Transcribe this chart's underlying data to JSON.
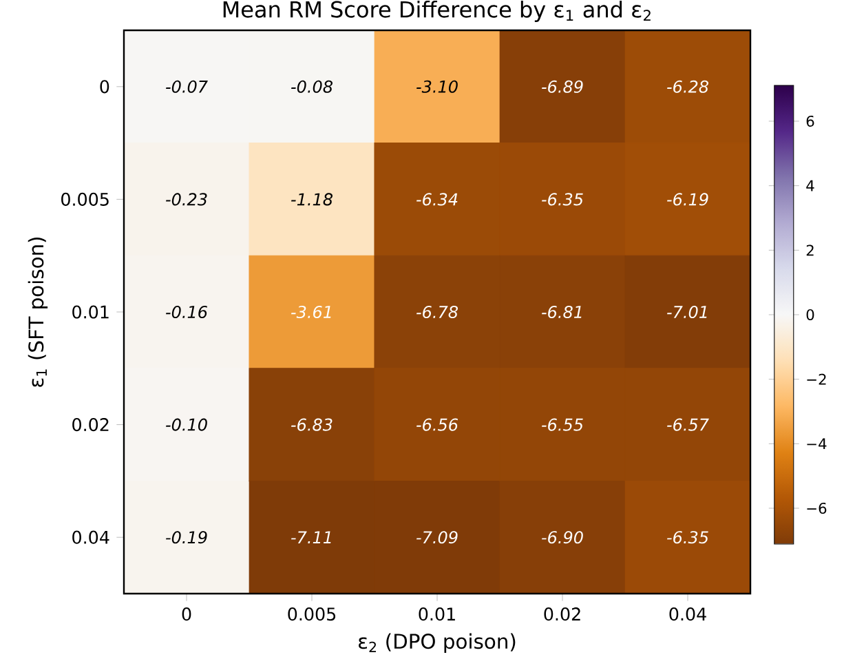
{
  "chart_data": {
    "type": "heatmap",
    "title": "Mean RM Score Difference by ε$_{1}$ and ε$_{2}$",
    "xlabel": "ε$_{2}$ (DPO poison)",
    "ylabel": "ε$_{1}$ (SFT poison)",
    "categories": [
      "0",
      "0.005",
      "0.01",
      "0.02",
      "0.04"
    ],
    "y_categories": [
      "0",
      "0.005",
      "0.01",
      "0.02",
      "0.04"
    ],
    "cells": [
      [
        -0.07,
        -0.08,
        -3.1,
        -6.89,
        -6.28
      ],
      [
        -0.23,
        -1.18,
        -6.34,
        -6.35,
        -6.19
      ],
      [
        -0.16,
        -3.61,
        -6.78,
        -6.81,
        -7.01
      ],
      [
        -0.1,
        -6.83,
        -6.56,
        -6.55,
        -6.57
      ],
      [
        -0.19,
        -7.11,
        -7.09,
        -6.9,
        -6.35
      ]
    ],
    "cell_labels": [
      [
        "-0.07",
        "-0.08",
        "-3.10",
        "-6.89",
        "-6.28"
      ],
      [
        "-0.23",
        "-1.18",
        "-6.34",
        "-6.35",
        "-6.19"
      ],
      [
        "-0.16",
        "-3.61",
        "-6.78",
        "-6.81",
        "-7.01"
      ],
      [
        "-0.10",
        "-6.83",
        "-6.56",
        "-6.55",
        "-6.57"
      ],
      [
        "-0.19",
        "-7.11",
        "-7.09",
        "-6.90",
        "-6.35"
      ]
    ],
    "data_labels": true,
    "clim": [
      -7.11,
      7.11
    ],
    "cticks": [
      {
        "value": -6,
        "label": "−6"
      },
      {
        "value": -4,
        "label": "−4"
      },
      {
        "value": -2,
        "label": "−2"
      },
      0,
      2,
      4,
      6
    ],
    "grid": false
  }
}
